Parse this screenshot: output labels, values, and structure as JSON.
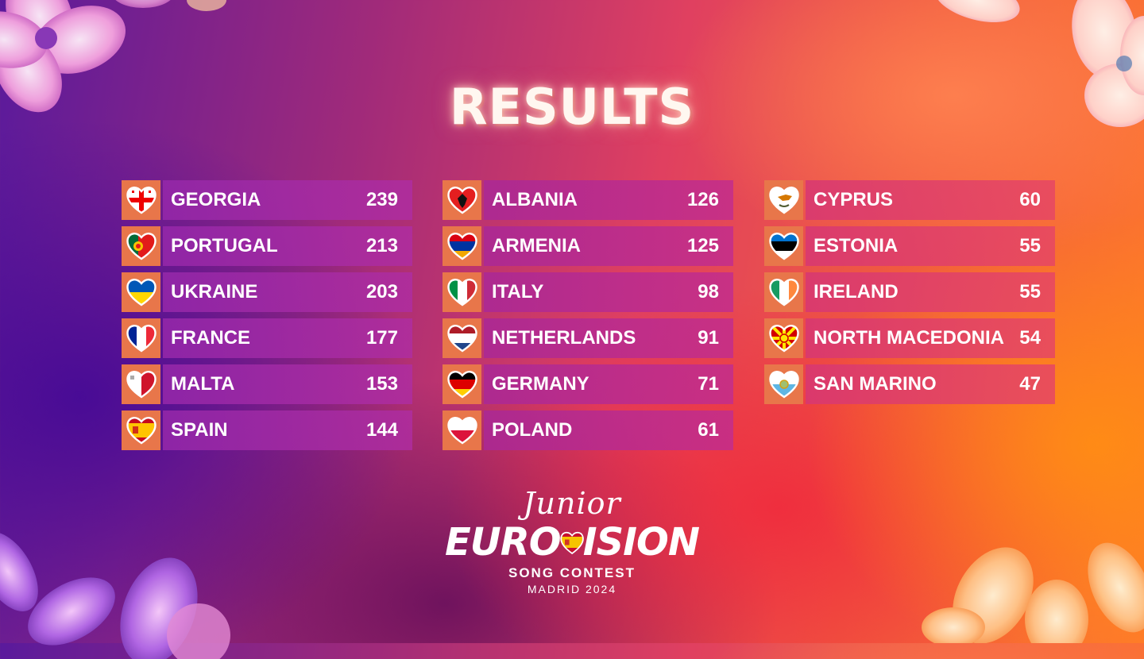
{
  "title": "RESULTS",
  "columns": [
    [
      {
        "country": "GEORGIA",
        "points": "239",
        "flag": "georgia-flag-heart-icon"
      },
      {
        "country": "PORTUGAL",
        "points": "213",
        "flag": "portugal-flag-heart-icon"
      },
      {
        "country": "UKRAINE",
        "points": "203",
        "flag": "ukraine-flag-heart-icon"
      },
      {
        "country": "FRANCE",
        "points": "177",
        "flag": "france-flag-heart-icon"
      },
      {
        "country": "MALTA",
        "points": "153",
        "flag": "malta-flag-heart-icon"
      },
      {
        "country": "SPAIN",
        "points": "144",
        "flag": "spain-flag-heart-icon"
      }
    ],
    [
      {
        "country": "ALBANIA",
        "points": "126",
        "flag": "albania-flag-heart-icon"
      },
      {
        "country": "ARMENIA",
        "points": "125",
        "flag": "armenia-flag-heart-icon"
      },
      {
        "country": "ITALY",
        "points": "98",
        "flag": "italy-flag-heart-icon"
      },
      {
        "country": "NETHERLANDS",
        "points": "91",
        "flag": "netherlands-flag-heart-icon"
      },
      {
        "country": "GERMANY",
        "points": "71",
        "flag": "germany-flag-heart-icon"
      },
      {
        "country": "POLAND",
        "points": "61",
        "flag": "poland-flag-heart-icon"
      }
    ],
    [
      {
        "country": "CYPRUS",
        "points": "60",
        "flag": "cyprus-flag-heart-icon"
      },
      {
        "country": "ESTONIA",
        "points": "55",
        "flag": "estonia-flag-heart-icon"
      },
      {
        "country": "IRELAND",
        "points": "55",
        "flag": "ireland-flag-heart-icon"
      },
      {
        "country": "NORTH MACEDONIA",
        "points": "54",
        "flag": "north-macedonia-flag-heart-icon"
      },
      {
        "country": "SAN MARINO",
        "points": "47",
        "flag": "san-marino-flag-heart-icon"
      }
    ]
  ],
  "logo": {
    "line1": "Junior",
    "line2_left": "EURO",
    "line2_right": "ISION",
    "line3": "SONG CONTEST",
    "line4": "MADRID 2024"
  },
  "colors": {
    "flag_box": "#e8764a",
    "text": "#ffffff"
  }
}
